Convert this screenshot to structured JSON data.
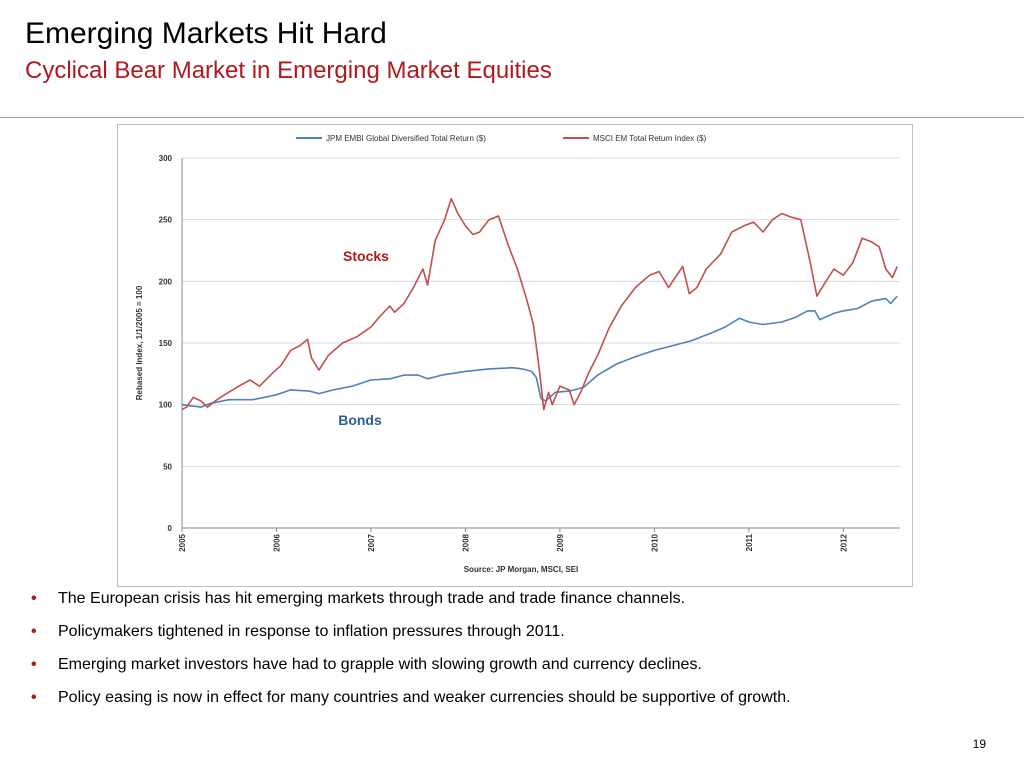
{
  "slide": {
    "title": "Emerging Markets Hit Hard",
    "subtitle": "Cyclical Bear Market in Emerging Market Equities",
    "page_number": "19",
    "accent_color": "#B0191E"
  },
  "bullets": [
    "The European crisis has hit emerging markets through trade and trade finance channels.",
    "Policymakers tightened in response to inflation pressures through 2011.",
    "Emerging market investors have had to grapple with slowing growth and currency declines.",
    "Policy easing is now in effect for many countries and weaker currencies should be supportive of growth."
  ],
  "chart_data": {
    "type": "line",
    "ylabel": "Rebased Index, 1/1/2005 = 100",
    "source": "Source: JP Morgan, MSCI, SEI",
    "ylim": [
      0,
      300
    ],
    "yticks": [
      0,
      50,
      100,
      150,
      200,
      250,
      300
    ],
    "xlim": [
      2005.0,
      2012.6
    ],
    "xticks": [
      "2005",
      "2006",
      "2007",
      "2008",
      "2009",
      "2010",
      "2011",
      "2012"
    ],
    "grid": true,
    "legend_position": "top",
    "annotations": {
      "stocks": "Stocks",
      "bonds": "Bonds"
    },
    "series": [
      {
        "name": "JPM EMBI Global Diversified Total Return ($)",
        "color": "#4F81BD",
        "points": [
          [
            2005.0,
            100
          ],
          [
            2005.1,
            99
          ],
          [
            2005.2,
            98
          ],
          [
            2005.3,
            101
          ],
          [
            2005.5,
            104
          ],
          [
            2005.75,
            104
          ],
          [
            2006.0,
            108
          ],
          [
            2006.15,
            112
          ],
          [
            2006.35,
            111
          ],
          [
            2006.45,
            109
          ],
          [
            2006.6,
            112
          ],
          [
            2006.8,
            115
          ],
          [
            2007.0,
            120
          ],
          [
            2007.2,
            121
          ],
          [
            2007.35,
            124
          ],
          [
            2007.5,
            124
          ],
          [
            2007.6,
            121
          ],
          [
            2007.75,
            124
          ],
          [
            2008.0,
            127
          ],
          [
            2008.25,
            129
          ],
          [
            2008.5,
            130
          ],
          [
            2008.6,
            129
          ],
          [
            2008.7,
            127
          ],
          [
            2008.75,
            122
          ],
          [
            2008.8,
            105
          ],
          [
            2008.85,
            103
          ],
          [
            2008.95,
            110
          ],
          [
            2009.1,
            111
          ],
          [
            2009.25,
            114
          ],
          [
            2009.4,
            124
          ],
          [
            2009.6,
            133
          ],
          [
            2009.8,
            139
          ],
          [
            2010.0,
            144
          ],
          [
            2010.2,
            148
          ],
          [
            2010.4,
            152
          ],
          [
            2010.5,
            155
          ],
          [
            2010.6,
            158
          ],
          [
            2010.75,
            163
          ],
          [
            2010.9,
            170
          ],
          [
            2011.0,
            167
          ],
          [
            2011.15,
            165
          ],
          [
            2011.35,
            167
          ],
          [
            2011.5,
            171
          ],
          [
            2011.62,
            176
          ],
          [
            2011.7,
            176
          ],
          [
            2011.75,
            169
          ],
          [
            2011.9,
            174
          ],
          [
            2012.0,
            176
          ],
          [
            2012.15,
            178
          ],
          [
            2012.3,
            184
          ],
          [
            2012.45,
            186
          ],
          [
            2012.5,
            182
          ],
          [
            2012.57,
            188
          ]
        ]
      },
      {
        "name": "MSCI EM Total Return Index ($)",
        "color": "#C0504D",
        "points": [
          [
            2005.0,
            96
          ],
          [
            2005.05,
            98
          ],
          [
            2005.12,
            106
          ],
          [
            2005.2,
            103
          ],
          [
            2005.27,
            98
          ],
          [
            2005.35,
            103
          ],
          [
            2005.45,
            108
          ],
          [
            2005.6,
            115
          ],
          [
            2005.72,
            120
          ],
          [
            2005.82,
            115
          ],
          [
            2005.95,
            125
          ],
          [
            2006.05,
            132
          ],
          [
            2006.15,
            144
          ],
          [
            2006.25,
            148
          ],
          [
            2006.33,
            153
          ],
          [
            2006.37,
            138
          ],
          [
            2006.45,
            128
          ],
          [
            2006.55,
            140
          ],
          [
            2006.7,
            150
          ],
          [
            2006.85,
            155
          ],
          [
            2007.0,
            163
          ],
          [
            2007.1,
            172
          ],
          [
            2007.2,
            180
          ],
          [
            2007.25,
            175
          ],
          [
            2007.35,
            182
          ],
          [
            2007.45,
            195
          ],
          [
            2007.55,
            210
          ],
          [
            2007.6,
            197
          ],
          [
            2007.68,
            233
          ],
          [
            2007.78,
            250
          ],
          [
            2007.85,
            267
          ],
          [
            2007.92,
            255
          ],
          [
            2008.0,
            245
          ],
          [
            2008.08,
            238
          ],
          [
            2008.15,
            240
          ],
          [
            2008.25,
            250
          ],
          [
            2008.35,
            253
          ],
          [
            2008.45,
            230
          ],
          [
            2008.55,
            210
          ],
          [
            2008.65,
            185
          ],
          [
            2008.72,
            165
          ],
          [
            2008.78,
            130
          ],
          [
            2008.83,
            96
          ],
          [
            2008.88,
            110
          ],
          [
            2008.92,
            100
          ],
          [
            2009.0,
            115
          ],
          [
            2009.1,
            112
          ],
          [
            2009.15,
            100
          ],
          [
            2009.22,
            110
          ],
          [
            2009.3,
            125
          ],
          [
            2009.4,
            140
          ],
          [
            2009.52,
            162
          ],
          [
            2009.65,
            180
          ],
          [
            2009.8,
            195
          ],
          [
            2009.95,
            205
          ],
          [
            2010.05,
            208
          ],
          [
            2010.15,
            195
          ],
          [
            2010.3,
            212
          ],
          [
            2010.37,
            190
          ],
          [
            2010.45,
            195
          ],
          [
            2010.55,
            210
          ],
          [
            2010.7,
            222
          ],
          [
            2010.82,
            240
          ],
          [
            2010.95,
            245
          ],
          [
            2011.05,
            248
          ],
          [
            2011.15,
            240
          ],
          [
            2011.25,
            250
          ],
          [
            2011.35,
            255
          ],
          [
            2011.45,
            252
          ],
          [
            2011.55,
            250
          ],
          [
            2011.65,
            215
          ],
          [
            2011.72,
            188
          ],
          [
            2011.8,
            198
          ],
          [
            2011.9,
            210
          ],
          [
            2012.0,
            205
          ],
          [
            2012.1,
            215
          ],
          [
            2012.2,
            235
          ],
          [
            2012.3,
            232
          ],
          [
            2012.38,
            228
          ],
          [
            2012.45,
            210
          ],
          [
            2012.52,
            203
          ],
          [
            2012.57,
            212
          ]
        ]
      }
    ]
  }
}
